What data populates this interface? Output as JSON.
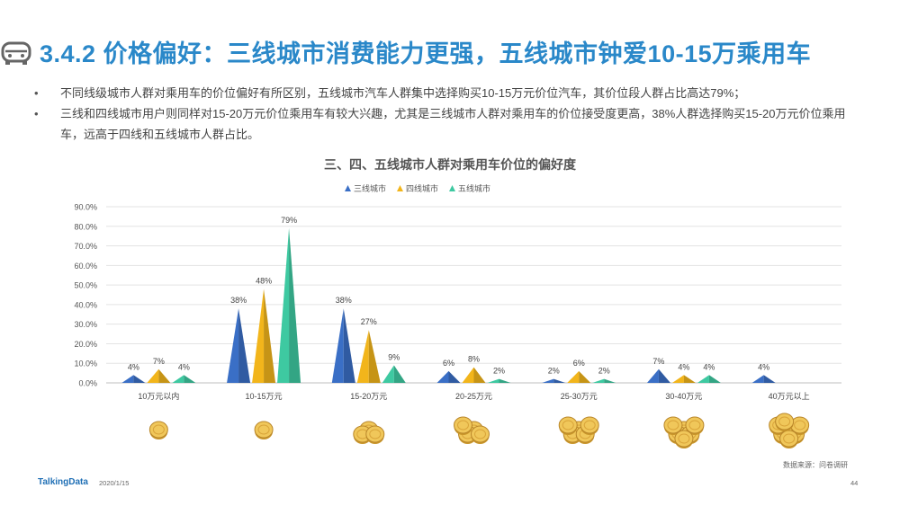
{
  "header": {
    "title": "3.4.2 价格偏好：三线城市消费能力更强，五线城市钟爱10-15万乘用车",
    "icon": "car-icon"
  },
  "bullets": [
    "不同线级城市人群对乘用车的价位偏好有所区别，五线城市汽车人群集中选择购买10-15万元价位汽车，其价位段人群占比高达79%；",
    "三线和四线城市用户则同样对15-20万元价位乘用车有较大兴趣，尤其是三线城市人群对乘用车的价位接受度更高，38%人群选择购买15-20万元价位乘用车，远高于四线和五线城市人群占比。"
  ],
  "bullet_marker": "•",
  "chart_data": {
    "type": "bar",
    "title": "三、四、五线城市人群对乘用车价位的偏好度",
    "categories": [
      "10万元以内",
      "10-15万元",
      "15-20万元",
      "20-25万元",
      "25-30万元",
      "30-40万元",
      "40万元以上"
    ],
    "series": [
      {
        "name": "三线城市",
        "values": [
          4,
          38,
          38,
          6,
          2,
          7,
          4
        ],
        "labels": [
          "4%",
          "38%",
          "38%",
          "6%",
          "2%",
          "7%",
          "4%"
        ],
        "color": "#3a6fc6"
      },
      {
        "name": "四线城市",
        "values": [
          7,
          48,
          27,
          8,
          6,
          4,
          null
        ],
        "labels": [
          "7%",
          "48%",
          "27%",
          "8%",
          "6%",
          "4%",
          ""
        ],
        "color": "#f2b51b"
      },
      {
        "name": "五线城市",
        "values": [
          4,
          79,
          9,
          2,
          2,
          4,
          null
        ],
        "labels": [
          "4%",
          "79%",
          "9%",
          "2%",
          "2%",
          "4%",
          ""
        ],
        "color": "#3ec9a1"
      }
    ],
    "yticks": [
      "0.0%",
      "10.0%",
      "20.0%",
      "30.0%",
      "40.0%",
      "50.0%",
      "60.0%",
      "70.0%",
      "80.0%",
      "90.0%"
    ],
    "ylim": [
      0,
      90
    ],
    "legend_position": "top",
    "grid": true
  },
  "coin_icon": "coin-stack-icon",
  "coin_stacks": [
    1,
    1,
    3,
    4,
    5,
    6,
    7
  ],
  "footer": {
    "source": "数据来源：问卷调研",
    "brand": "TalkingData",
    "date": "2020/1/15",
    "page": "44"
  }
}
